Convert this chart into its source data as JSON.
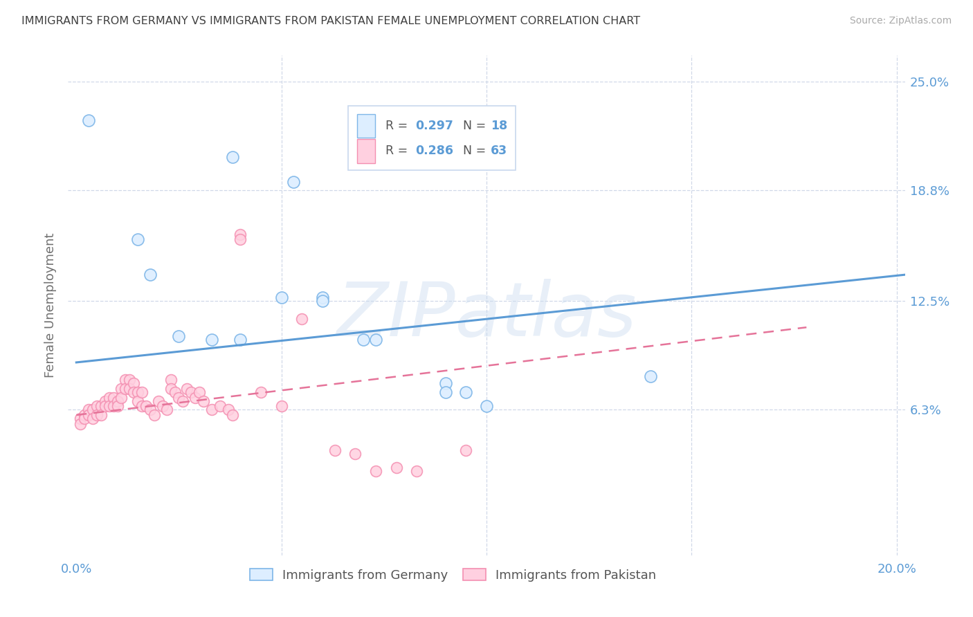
{
  "title": "IMMIGRANTS FROM GERMANY VS IMMIGRANTS FROM PAKISTAN FEMALE UNEMPLOYMENT CORRELATION CHART",
  "source": "Source: ZipAtlas.com",
  "xlabel_germany": "Immigrants from Germany",
  "xlabel_pakistan": "Immigrants from Pakistan",
  "ylabel": "Female Unemployment",
  "xlim": [
    -0.002,
    0.202
  ],
  "ylim": [
    -0.02,
    0.265
  ],
  "ytick_right_vals": [
    0.063,
    0.125,
    0.188,
    0.25
  ],
  "ytick_right_labels": [
    "6.3%",
    "12.5%",
    "18.8%",
    "25.0%"
  ],
  "r_germany": 0.297,
  "n_germany": 18,
  "r_pakistan": 0.286,
  "n_pakistan": 63,
  "color_germany_fill": "#ddeeff",
  "color_germany_edge": "#7eb6e8",
  "color_pakistan_fill": "#ffd0e0",
  "color_pakistan_edge": "#f48fb1",
  "color_axis_labels": "#5b9bd5",
  "germany_scatter": [
    [
      0.003,
      0.228
    ],
    [
      0.038,
      0.207
    ],
    [
      0.015,
      0.16
    ],
    [
      0.053,
      0.193
    ],
    [
      0.018,
      0.14
    ],
    [
      0.05,
      0.127
    ],
    [
      0.06,
      0.127
    ],
    [
      0.025,
      0.105
    ],
    [
      0.033,
      0.103
    ],
    [
      0.04,
      0.103
    ],
    [
      0.06,
      0.125
    ],
    [
      0.07,
      0.103
    ],
    [
      0.073,
      0.103
    ],
    [
      0.09,
      0.078
    ],
    [
      0.09,
      0.073
    ],
    [
      0.095,
      0.073
    ],
    [
      0.1,
      0.065
    ],
    [
      0.14,
      0.082
    ]
  ],
  "pakistan_scatter": [
    [
      0.001,
      0.058
    ],
    [
      0.001,
      0.055
    ],
    [
      0.002,
      0.06
    ],
    [
      0.002,
      0.058
    ],
    [
      0.003,
      0.063
    ],
    [
      0.003,
      0.06
    ],
    [
      0.004,
      0.063
    ],
    [
      0.004,
      0.058
    ],
    [
      0.005,
      0.065
    ],
    [
      0.005,
      0.06
    ],
    [
      0.006,
      0.065
    ],
    [
      0.006,
      0.06
    ],
    [
      0.007,
      0.068
    ],
    [
      0.007,
      0.065
    ],
    [
      0.008,
      0.07
    ],
    [
      0.008,
      0.065
    ],
    [
      0.009,
      0.07
    ],
    [
      0.009,
      0.065
    ],
    [
      0.01,
      0.068
    ],
    [
      0.01,
      0.065
    ],
    [
      0.011,
      0.075
    ],
    [
      0.011,
      0.07
    ],
    [
      0.012,
      0.08
    ],
    [
      0.012,
      0.075
    ],
    [
      0.013,
      0.08
    ],
    [
      0.013,
      0.075
    ],
    [
      0.014,
      0.078
    ],
    [
      0.014,
      0.073
    ],
    [
      0.015,
      0.073
    ],
    [
      0.015,
      0.068
    ],
    [
      0.016,
      0.073
    ],
    [
      0.016,
      0.065
    ],
    [
      0.017,
      0.065
    ],
    [
      0.018,
      0.063
    ],
    [
      0.019,
      0.06
    ],
    [
      0.02,
      0.068
    ],
    [
      0.021,
      0.065
    ],
    [
      0.022,
      0.063
    ],
    [
      0.023,
      0.08
    ],
    [
      0.023,
      0.075
    ],
    [
      0.024,
      0.073
    ],
    [
      0.025,
      0.07
    ],
    [
      0.026,
      0.068
    ],
    [
      0.027,
      0.075
    ],
    [
      0.028,
      0.073
    ],
    [
      0.029,
      0.07
    ],
    [
      0.03,
      0.073
    ],
    [
      0.031,
      0.068
    ],
    [
      0.033,
      0.063
    ],
    [
      0.035,
      0.065
    ],
    [
      0.037,
      0.063
    ],
    [
      0.038,
      0.06
    ],
    [
      0.04,
      0.163
    ],
    [
      0.04,
      0.16
    ],
    [
      0.045,
      0.073
    ],
    [
      0.05,
      0.065
    ],
    [
      0.055,
      0.115
    ],
    [
      0.063,
      0.04
    ],
    [
      0.068,
      0.038
    ],
    [
      0.073,
      0.028
    ],
    [
      0.078,
      0.03
    ],
    [
      0.083,
      0.028
    ],
    [
      0.095,
      0.04
    ]
  ],
  "germany_trend_x": [
    0.0,
    0.202
  ],
  "germany_trend_y": [
    0.09,
    0.14
  ],
  "pakistan_trend_x": [
    0.0,
    0.178
  ],
  "pakistan_trend_y": [
    0.06,
    0.11
  ],
  "background_color": "#ffffff",
  "grid_color": "#d0d8e8",
  "title_color": "#404040",
  "watermark_text": "ZIPatlas",
  "watermark_color": "#ccddf0",
  "watermark_alpha": 0.45
}
